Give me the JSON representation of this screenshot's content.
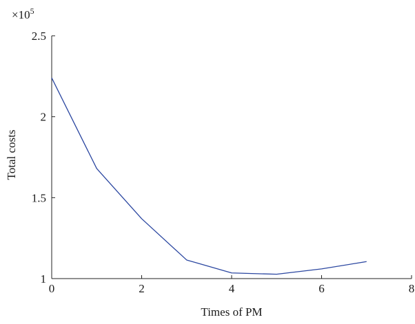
{
  "chart_data": {
    "type": "line",
    "title": "",
    "xlabel": "Times of PM",
    "ylabel": "Total costs",
    "exponent_base": "×10",
    "exponent_power": "5",
    "xlim": [
      0,
      8
    ],
    "ylim": [
      1,
      2.5
    ],
    "x_ticks": [
      0,
      2,
      4,
      6,
      8
    ],
    "x_tick_labels": [
      "0",
      "2",
      "4",
      "6",
      "8"
    ],
    "y_ticks": [
      1,
      1.5,
      2,
      2.5
    ],
    "y_tick_labels": [
      "1",
      "1.5",
      "2",
      "2.5"
    ],
    "grid": false,
    "series": [
      {
        "color": "#2a46a0",
        "x": [
          0,
          1,
          2,
          3,
          4,
          5,
          6,
          7
        ],
        "y": [
          2.24,
          1.68,
          1.37,
          1.115,
          1.035,
          1.027,
          1.06,
          1.105
        ]
      }
    ]
  }
}
